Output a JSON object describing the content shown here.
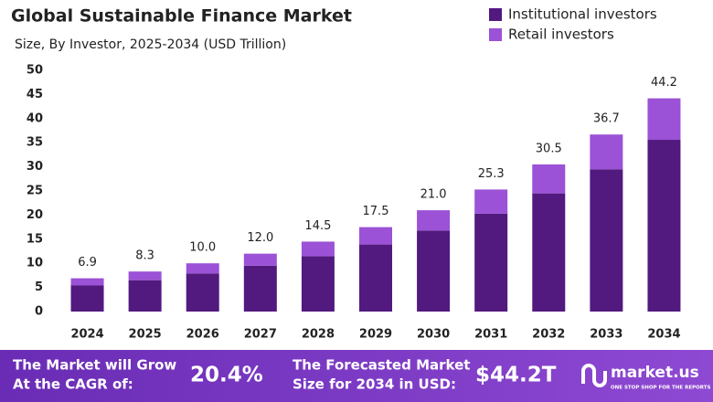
{
  "chart_data": {
    "type": "stacked_bar",
    "title": "Global Sustainable Finance Market",
    "subtitle": "Size, By Investor, 2025-2034 (USD Trillion)",
    "categories": [
      "2024",
      "2025",
      "2026",
      "2027",
      "2028",
      "2029",
      "2030",
      "2031",
      "2032",
      "2033",
      "2034"
    ],
    "series": [
      {
        "name": "Institutional investors",
        "color": "#52197f",
        "values": [
          5.4,
          6.5,
          7.9,
          9.5,
          11.5,
          13.9,
          16.8,
          20.3,
          24.5,
          29.5,
          35.6
        ]
      },
      {
        "name": "Retail investors",
        "color": "#9b52d6",
        "values": [
          1.5,
          1.8,
          2.1,
          2.5,
          3.0,
          3.6,
          4.2,
          5.0,
          6.0,
          7.2,
          8.6
        ]
      }
    ],
    "totals": [
      6.9,
      8.3,
      10.0,
      12.0,
      14.5,
      17.5,
      21.0,
      25.3,
      30.5,
      36.7,
      44.2
    ],
    "total_labels": [
      "6.9",
      "8.3",
      "10.0",
      "12.0",
      "14.5",
      "17.5",
      "21.0",
      "25.3",
      "30.5",
      "36.7",
      "44.2"
    ],
    "ylim": [
      0,
      50
    ],
    "yticks": [
      0,
      5,
      10,
      15,
      20,
      25,
      30,
      35,
      40,
      45,
      50
    ],
    "grid": false,
    "legend": "top-right"
  },
  "footer": {
    "cagr_text_1": "The Market will Grow",
    "cagr_text_2": "At the CAGR of:",
    "cagr_value": "20.4%",
    "forecast_text_1": "The Forecasted Market",
    "forecast_text_2": "Size for 2034 in USD:",
    "forecast_value": "$44.2T",
    "brand": "market.us",
    "brand_tagline": "ONE STOP SHOP FOR THE REPORTS"
  }
}
